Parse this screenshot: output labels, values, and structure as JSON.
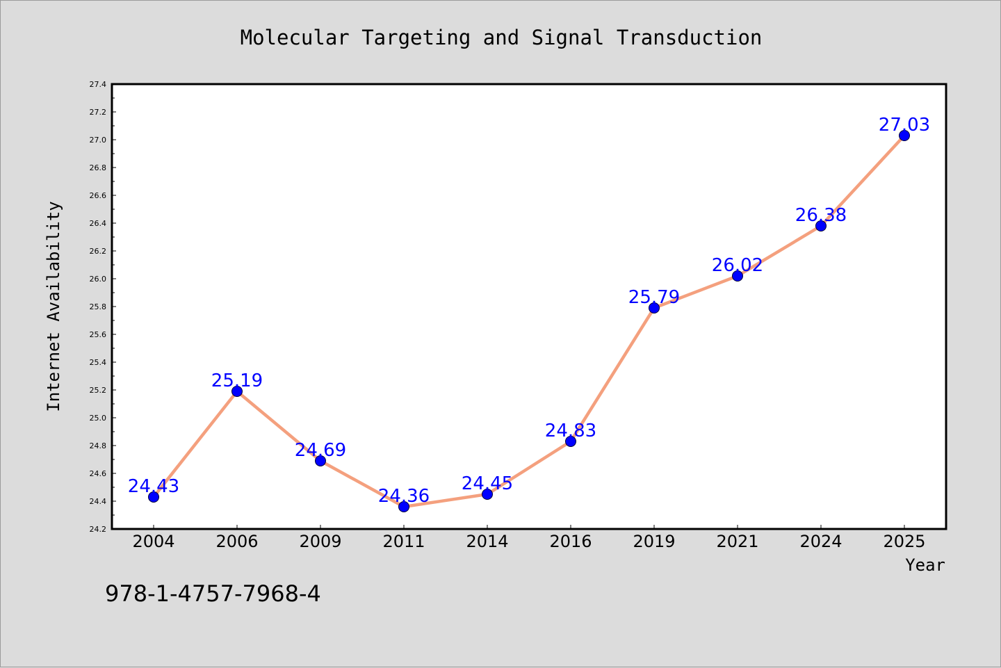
{
  "footnote": "978-1-4757-7968-4",
  "colors": {
    "background": "#dcdcdc",
    "plot_background": "#ffffff",
    "line": "#f4a07e",
    "marker": "#0000ff",
    "data_label": "#0000ff"
  },
  "chart_data": {
    "type": "line",
    "title": "Molecular Targeting and Signal Transduction",
    "xlabel": "Year",
    "ylabel": "Internet Availability",
    "categories": [
      "2004",
      "2006",
      "2009",
      "2011",
      "2014",
      "2016",
      "2019",
      "2021",
      "2024",
      "2025"
    ],
    "series": [
      {
        "values": [
          24.43,
          25.19,
          24.69,
          24.36,
          24.45,
          24.83,
          25.79,
          26.02,
          26.38,
          27.03
        ]
      }
    ],
    "data_labels": [
      "24.43",
      "25.19",
      "24.69",
      "24.36",
      "24.45",
      "24.83",
      "25.79",
      "26.02",
      "26.38",
      "27.03"
    ],
    "ylim": [
      24.2,
      27.4
    ],
    "yticks": [
      "24.2",
      "24.4",
      "24.6",
      "24.8",
      "25.0",
      "25.2",
      "25.4",
      "25.6",
      "25.8",
      "26.0",
      "26.2",
      "26.4",
      "26.6",
      "26.8",
      "27.0",
      "27.2",
      "27.4"
    ],
    "grid": false,
    "legend": "none"
  }
}
